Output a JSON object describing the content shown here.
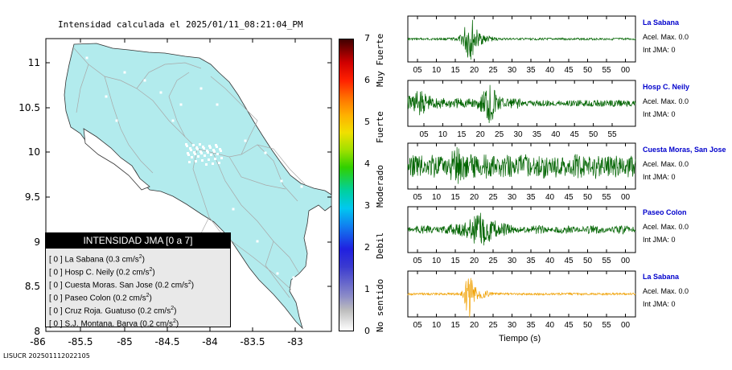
{
  "title": "Intensidad calculada el 2025/01/11_08:21:04_PM",
  "footer_id": "LISUCR 202501112022105",
  "map": {
    "lon_ticks": [
      "-86",
      "-85.5",
      "-85",
      "-84.5",
      "-84",
      "-83.5",
      "-83"
    ],
    "lat_ticks": [
      "11",
      "10.5",
      "10",
      "9.5",
      "9",
      "8.5",
      "8"
    ],
    "land_color": "#b2ebed",
    "road_color": "#a8a8a8"
  },
  "colorbar": {
    "ticks": [
      "0",
      "1",
      "2",
      "3",
      "4",
      "5",
      "6",
      "7"
    ],
    "labels": [
      "No sentido",
      "Debil",
      "Moderado",
      "Fuerte",
      "Muy Fuerte"
    ]
  },
  "legend": {
    "header": "INTENSIDAD JMA [0 a 7]",
    "rows": [
      {
        "level": "[ 0 ]",
        "name": "La Sabana",
        "accel": "(0.3 cm/s",
        "exp": "2",
        "close": ")"
      },
      {
        "level": "[ 0 ]",
        "name": "Hosp C. Neily",
        "accel": "(0.2 cm/s",
        "exp": "2",
        "close": ")"
      },
      {
        "level": "[ 0 ]",
        "name": "Cuesta Moras. San Jose",
        "accel": "(0.2 cm/s",
        "exp": "2",
        "close": ")"
      },
      {
        "level": "[ 0 ]",
        "name": "Paseo Colon",
        "accel": "(0.2 cm/s",
        "exp": "2",
        "close": ")"
      },
      {
        "level": "[ 0 ]",
        "name": "Cruz Roja. Guatuso",
        "accel": "(0.2 cm/s",
        "exp": "2",
        "close": ")"
      },
      {
        "level": "[ 0 ]",
        "name": "S.J. Montana. Barva",
        "accel": "(0.2 cm/s",
        "exp": "2",
        "close": ")"
      }
    ]
  },
  "seismograms": {
    "x_ticks_a": [
      "05",
      "10",
      "15",
      "20",
      "25",
      "30",
      "35",
      "40",
      "45",
      "50",
      "55",
      "00"
    ],
    "x_ticks_b": [
      "05",
      "10",
      "15",
      "20",
      "25",
      "30",
      "35",
      "40",
      "45",
      "50",
      "55"
    ],
    "xlabel": "Tiempo (s)",
    "traces": [
      {
        "station": "La Sabana",
        "accel": "Acel. Max. 0.0",
        "jma": "Int JMA: 0",
        "color": "#006400"
      },
      {
        "station": "Hosp C. Neily",
        "accel": "Acel. Max. 0.0",
        "jma": "Int JMA: 0",
        "color": "#006400"
      },
      {
        "station": "Cuesta Moras, San Jose",
        "accel": "Acel. Max. 0.0",
        "jma": "Int JMA: 0",
        "color": "#006400"
      },
      {
        "station": "Paseo Colon",
        "accel": "Acel. Max. 0.0",
        "jma": "Int JMA: 0",
        "color": "#006400"
      },
      {
        "station": "La Sabana",
        "accel": "Acel. Max. 0.0",
        "jma": "Int JMA: 0",
        "color": "#f0a000"
      }
    ]
  }
}
